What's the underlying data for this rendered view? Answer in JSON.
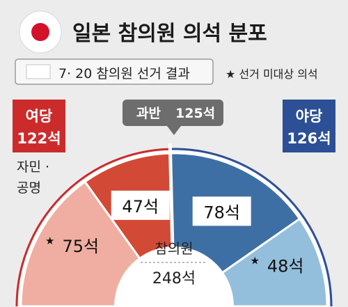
{
  "header": {
    "title": "일본 참의원 의석 분포",
    "flag_icon": "japan-flag-icon"
  },
  "legend": {
    "election_label": "7· 20 참의원 선거 결과",
    "uncontested_label": "★ 선거 미대상 의석"
  },
  "majority": {
    "label": "과반",
    "value": "125석"
  },
  "ruling": {
    "name": "여당",
    "total": "122석",
    "parties_line1": "자민 ·",
    "parties_line2": "공명"
  },
  "opposition": {
    "name": "야당",
    "total": "126석"
  },
  "center": {
    "label": "참의원",
    "total": "248석"
  },
  "colors": {
    "ruling_dark": "#d24a35",
    "ruling_light": "#efaea1",
    "ruling_line": "#cc2b2b",
    "opposition_dark": "#3e6fa4",
    "opposition_light": "#93bfdc",
    "opposition_line": "#2c4f96",
    "majority_box": "#6d6d6d"
  },
  "chart_data": {
    "type": "pie",
    "total": 248,
    "majority_threshold": 125,
    "segments": [
      {
        "group": "여당",
        "kind": "uncontested",
        "value": 75,
        "label": "75석",
        "starred": true
      },
      {
        "group": "여당",
        "kind": "election",
        "value": 47,
        "label": "47석",
        "starred": false
      },
      {
        "group": "야당",
        "kind": "election",
        "value": 78,
        "label": "78석",
        "starred": false
      },
      {
        "group": "야당",
        "kind": "uncontested",
        "value": 48,
        "label": "48석",
        "starred": true
      }
    ]
  }
}
